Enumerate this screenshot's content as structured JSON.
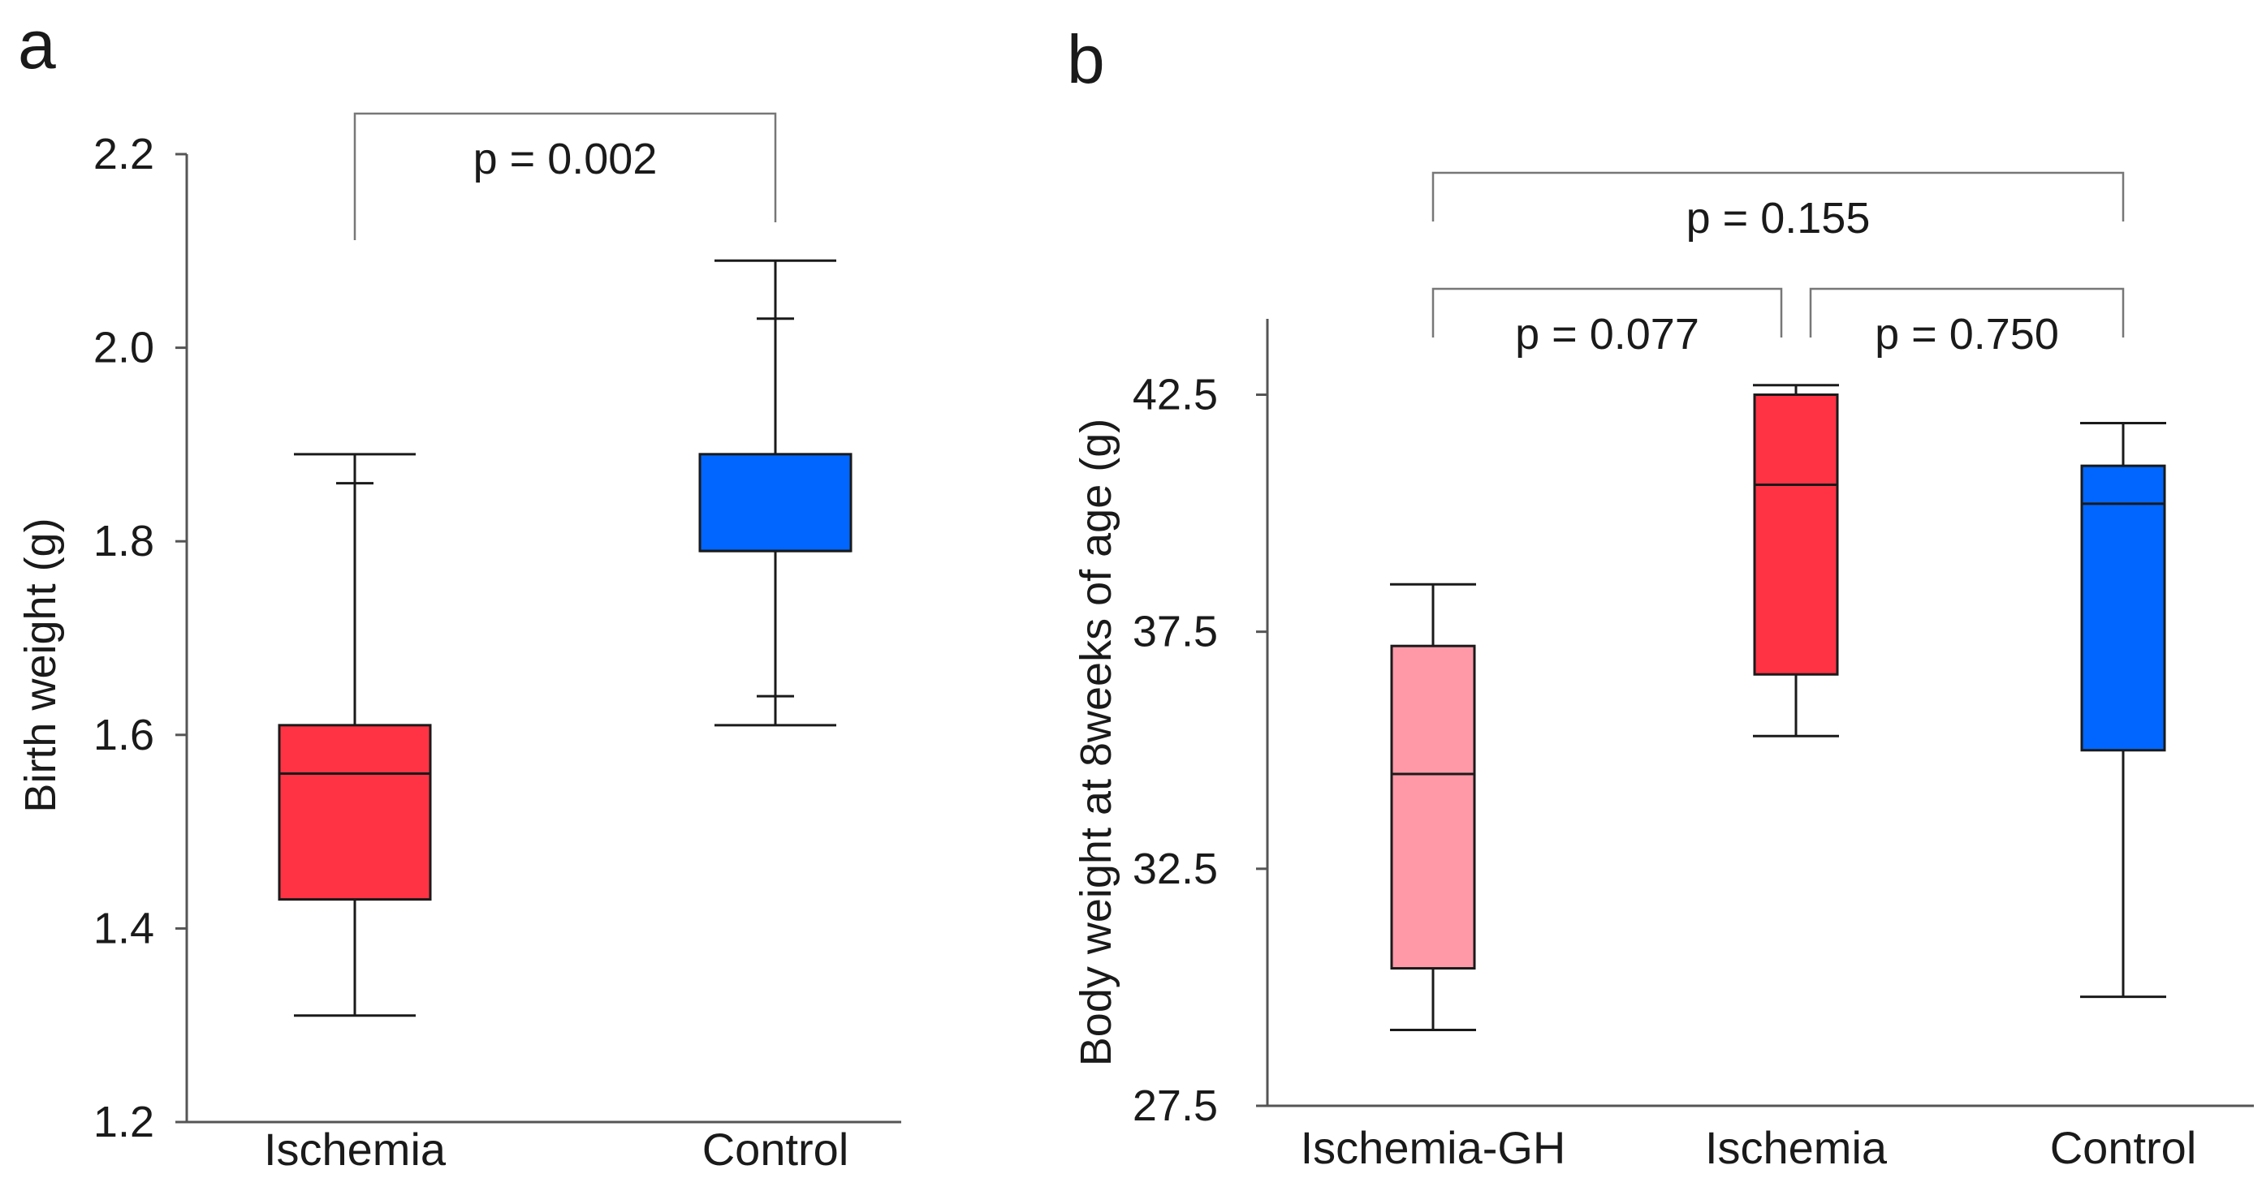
{
  "chart_data": [
    {
      "panel": "a",
      "type": "box",
      "title": "",
      "xlabel": "",
      "ylabel": "Birth weight (g)",
      "ylim": [
        1.2,
        2.2
      ],
      "yticks": [
        "1.2",
        "1.4",
        "1.6",
        "1.8",
        "2.0",
        "2.2"
      ],
      "categories": [
        "Ischemia",
        "Control"
      ],
      "boxes": [
        {
          "category": "Ischemia",
          "color": "#ff3344",
          "whisker_low": 1.31,
          "q1": 1.43,
          "median": 1.56,
          "q3": 1.61,
          "whisker_high": 1.89,
          "outlier_marks": [
            1.86
          ]
        },
        {
          "category": "Control",
          "color": "#0066ff",
          "whisker_low": 1.61,
          "q1": 1.79,
          "median": 1.79,
          "q3": 1.89,
          "whisker_high": 2.09,
          "outlier_marks": [
            1.64,
            2.03
          ]
        }
      ],
      "comparisons": [
        {
          "from": "Ischemia",
          "to": "Control",
          "label": "p = 0.002"
        }
      ]
    },
    {
      "panel": "b",
      "type": "box",
      "title": "",
      "xlabel": "",
      "ylabel": "Body weight at 8weeks of age (g)",
      "ylim": [
        27.5,
        44.1
      ],
      "yticks": [
        "27.5",
        "32.5",
        "37.5",
        "42.5"
      ],
      "categories": [
        "Ischemia-GH",
        "Ischemia",
        "Control"
      ],
      "boxes": [
        {
          "category": "Ischemia-GH",
          "color": "#ff99a8",
          "whisker_low": 29.1,
          "q1": 30.4,
          "median": 34.5,
          "q3": 37.2,
          "whisker_high": 38.5,
          "outlier_marks": []
        },
        {
          "category": "Ischemia",
          "color": "#ff3344",
          "whisker_low": 35.3,
          "q1": 36.6,
          "median": 40.6,
          "q3": 42.5,
          "whisker_high": 42.7,
          "outlier_marks": []
        },
        {
          "category": "Control",
          "color": "#0066ff",
          "whisker_low": 29.8,
          "q1": 35.0,
          "median": 40.2,
          "q3": 41.0,
          "whisker_high": 41.9,
          "outlier_marks": []
        }
      ],
      "comparisons": [
        {
          "from": "Ischemia-GH",
          "to": "Ischemia",
          "label": "p = 0.077",
          "level": 0
        },
        {
          "from": "Ischemia",
          "to": "Control",
          "label": "p = 0.750",
          "level": 0
        },
        {
          "from": "Ischemia-GH",
          "to": "Control",
          "label": "p = 0.155",
          "level": 1
        }
      ]
    }
  ]
}
